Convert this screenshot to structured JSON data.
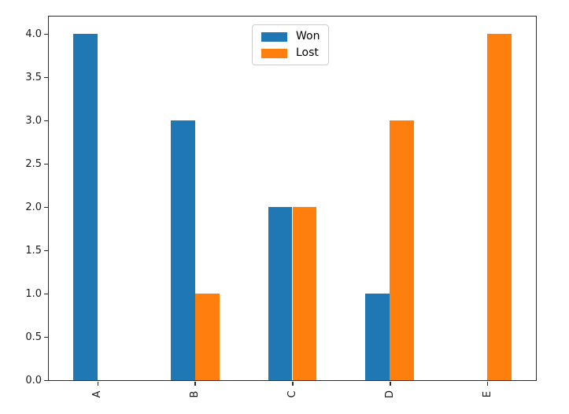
{
  "chart_data": {
    "type": "bar",
    "title": "",
    "xlabel": "",
    "ylabel": "",
    "categories": [
      "A",
      "B",
      "C",
      "D",
      "E"
    ],
    "series": [
      {
        "name": "Won",
        "color": "#1f77b4",
        "values": [
          4,
          3,
          2,
          1,
          0
        ]
      },
      {
        "name": "Lost",
        "color": "#ff7f0e",
        "values": [
          0,
          1,
          2,
          3,
          4
        ]
      }
    ],
    "ylim": [
      0,
      4.2
    ],
    "yticks": [
      "0.0",
      "0.5",
      "1.0",
      "1.5",
      "2.0",
      "2.5",
      "3.0",
      "3.5",
      "4.0"
    ],
    "xtick_rotation": 90,
    "bar_fraction": 0.25,
    "grid": false,
    "legend_position": "upper center",
    "background": "#ffffff",
    "spine_color": "#2b2b2b"
  }
}
